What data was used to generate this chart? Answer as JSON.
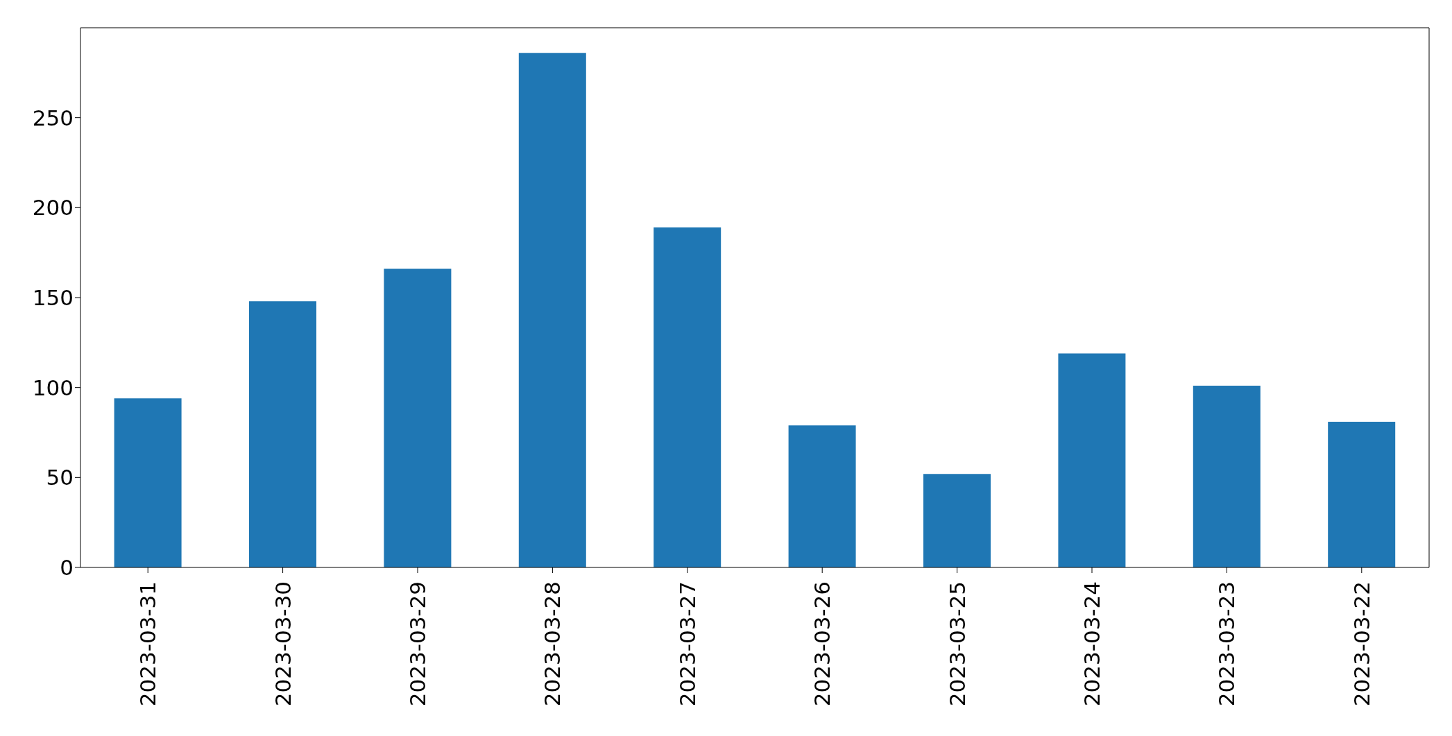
{
  "chart_data": {
    "type": "bar",
    "categories": [
      "2023-03-31",
      "2023-03-30",
      "2023-03-29",
      "2023-03-28",
      "2023-03-27",
      "2023-03-26",
      "2023-03-25",
      "2023-03-24",
      "2023-03-23",
      "2023-03-22"
    ],
    "values": [
      94,
      148,
      166,
      286,
      189,
      79,
      52,
      119,
      101,
      81
    ],
    "color": "#1f77b4",
    "ylim": [
      0,
      300
    ],
    "yticks": [
      0,
      50,
      100,
      150,
      200,
      250
    ],
    "grid": false
  }
}
